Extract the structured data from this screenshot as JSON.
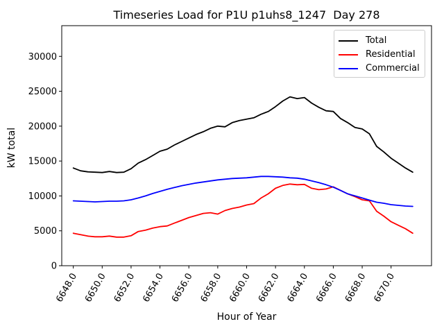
{
  "chart_data": {
    "type": "line",
    "title": "Timeseries Load for P1U p1uhs8_1247  Day 278",
    "xlabel": "Hour of Year",
    "ylabel": "kW total",
    "xlim": [
      6647.2,
      6672.8
    ],
    "ylim": [
      0,
      34400
    ],
    "grid": false,
    "legend_position": "upper right",
    "x_ticks": {
      "values": [
        6648,
        6650,
        6652,
        6654,
        6656,
        6658,
        6660,
        6662,
        6664,
        6666,
        6668,
        6670
      ],
      "labels": [
        "6648.0",
        "6650.0",
        "6652.0",
        "6654.0",
        "6656.0",
        "6658.0",
        "6660.0",
        "6662.0",
        "6664.0",
        "6666.0",
        "6668.0",
        "6670.0"
      ]
    },
    "y_ticks": {
      "values": [
        0,
        5000,
        10000,
        15000,
        20000,
        25000,
        30000
      ],
      "labels": [
        "0",
        "5000",
        "10000",
        "15000",
        "20000",
        "25000",
        "30000"
      ]
    },
    "x": [
      6648.0,
      6648.5,
      6649.0,
      6649.5,
      6650.0,
      6650.5,
      6651.0,
      6651.5,
      6652.0,
      6652.5,
      6653.0,
      6653.5,
      6654.0,
      6654.5,
      6655.0,
      6655.5,
      6656.0,
      6656.5,
      6657.0,
      6657.5,
      6658.0,
      6658.5,
      6659.0,
      6659.5,
      6660.0,
      6660.5,
      6661.0,
      6661.5,
      6662.0,
      6662.5,
      6663.0,
      6663.5,
      6664.0,
      6664.5,
      6665.0,
      6665.5,
      6666.0,
      6666.5,
      6667.0,
      6667.5,
      6668.0,
      6668.5,
      6669.0,
      6669.5,
      6670.0,
      6670.5,
      6671.0,
      6671.5
    ],
    "series": [
      {
        "name": "Total",
        "color": "#000000",
        "values": [
          14000,
          13600,
          13450,
          13400,
          13350,
          13500,
          13350,
          13400,
          13900,
          14700,
          15200,
          15800,
          16400,
          16700,
          17300,
          17800,
          18300,
          18800,
          19200,
          19700,
          20000,
          19900,
          20500,
          20800,
          21000,
          21200,
          21700,
          22100,
          22800,
          23600,
          24200,
          23950,
          24100,
          23300,
          22700,
          22200,
          22100,
          21100,
          20500,
          19800,
          19600,
          18900,
          17100,
          16300,
          15400,
          14700,
          14000,
          13400
        ]
      },
      {
        "name": "Residential",
        "color": "#ff0000",
        "values": [
          4650,
          4450,
          4250,
          4150,
          4150,
          4250,
          4100,
          4100,
          4300,
          4900,
          5100,
          5400,
          5600,
          5700,
          6100,
          6500,
          6900,
          7200,
          7500,
          7600,
          7400,
          7900,
          8200,
          8400,
          8700,
          8900,
          9700,
          10300,
          11100,
          11500,
          11700,
          11600,
          11650,
          11100,
          10900,
          11000,
          11300,
          10800,
          10300,
          9900,
          9450,
          9300,
          7800,
          7100,
          6300,
          5800,
          5300,
          4650
        ]
      },
      {
        "name": "Commercial",
        "color": "#0000ff",
        "values": [
          9300,
          9250,
          9200,
          9150,
          9200,
          9250,
          9250,
          9300,
          9450,
          9700,
          10000,
          10350,
          10650,
          10950,
          11200,
          11450,
          11650,
          11850,
          12000,
          12150,
          12300,
          12400,
          12500,
          12550,
          12600,
          12700,
          12800,
          12800,
          12750,
          12700,
          12600,
          12550,
          12400,
          12150,
          11900,
          11600,
          11250,
          10800,
          10300,
          10000,
          9700,
          9400,
          9100,
          8950,
          8750,
          8650,
          8550,
          8500
        ]
      }
    ]
  }
}
